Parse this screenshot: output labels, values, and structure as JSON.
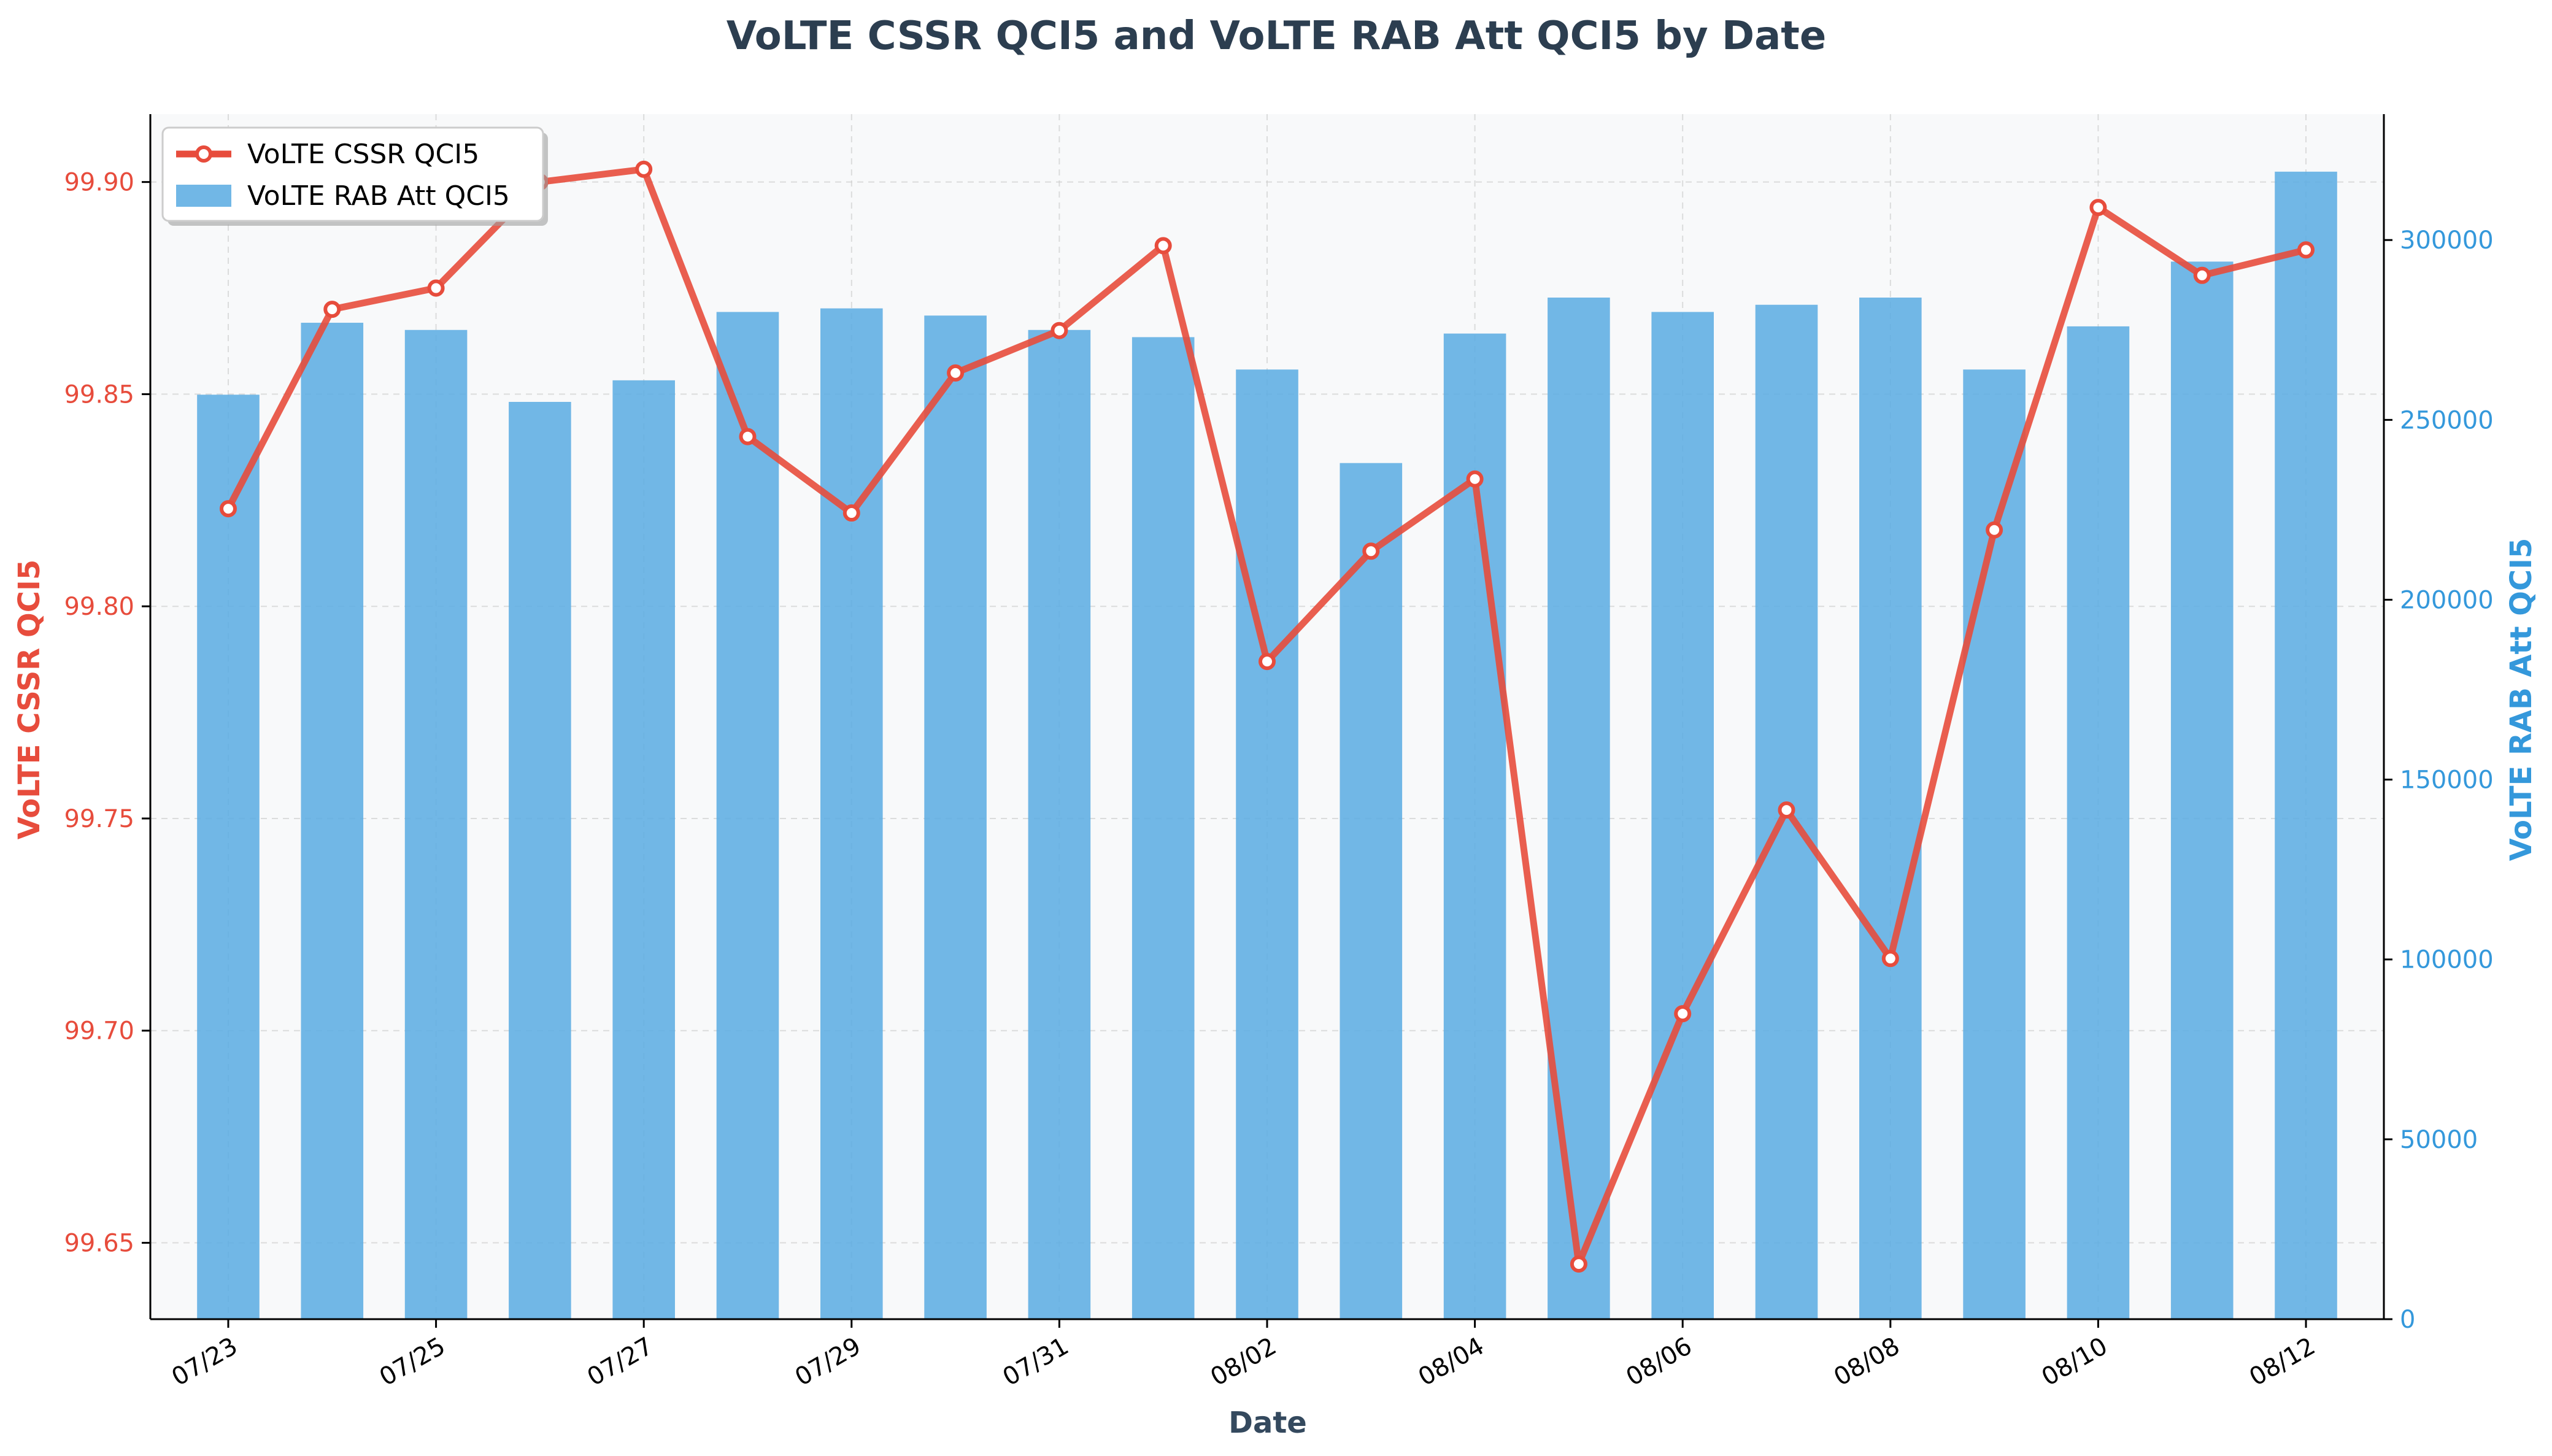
{
  "chart_data": {
    "type": "bar+line",
    "title": "VoLTE CSSR QCI5 and VoLTE RAB Att QCI5 by Date",
    "xlabel": "Date",
    "ylabel_left": "VoLTE CSSR QCI5",
    "ylabel_right": "VoLTE RAB Att QCI5",
    "categories": [
      "07/23",
      "07/24",
      "07/25",
      "07/26",
      "07/27",
      "07/28",
      "07/29",
      "07/30",
      "07/31",
      "08/01",
      "08/02",
      "08/03",
      "08/04",
      "08/05",
      "08/06",
      "08/07",
      "08/08",
      "08/09",
      "08/10",
      "08/11",
      "08/12"
    ],
    "x_tick_labels": [
      "07/23",
      "07/25",
      "07/27",
      "07/29",
      "07/31",
      "08/02",
      "08/04",
      "08/06",
      "08/08",
      "08/10",
      "08/12"
    ],
    "series": [
      {
        "name": "VoLTE CSSR QCI5",
        "type": "line",
        "axis": "left",
        "color": "#e74c3c",
        "values": [
          99.823,
          99.87,
          99.875,
          99.9,
          99.903,
          99.84,
          99.822,
          99.855,
          99.865,
          99.885,
          99.787,
          99.813,
          99.83,
          99.645,
          99.704,
          99.752,
          99.717,
          99.818,
          99.894,
          99.878,
          99.884
        ]
      },
      {
        "name": "VoLTE RAB Att QCI5",
        "type": "bar",
        "axis": "right",
        "color": "#5dade2",
        "values": [
          257000,
          277000,
          275000,
          255000,
          261000,
          280000,
          281000,
          279000,
          275000,
          273000,
          264000,
          238000,
          274000,
          284000,
          280000,
          282000,
          284000,
          264000,
          276000,
          294000,
          319000
        ]
      }
    ],
    "ylim_left": [
      99.632,
      99.916
    ],
    "ylim_right": [
      0,
      335000
    ],
    "yticks_left": [
      "99.65",
      "99.70",
      "99.75",
      "99.80",
      "99.85",
      "99.90"
    ],
    "yticks_right": [
      "0",
      "50000",
      "100000",
      "150000",
      "200000",
      "250000",
      "300000"
    ],
    "grid": true,
    "legend_position": "top-left"
  }
}
